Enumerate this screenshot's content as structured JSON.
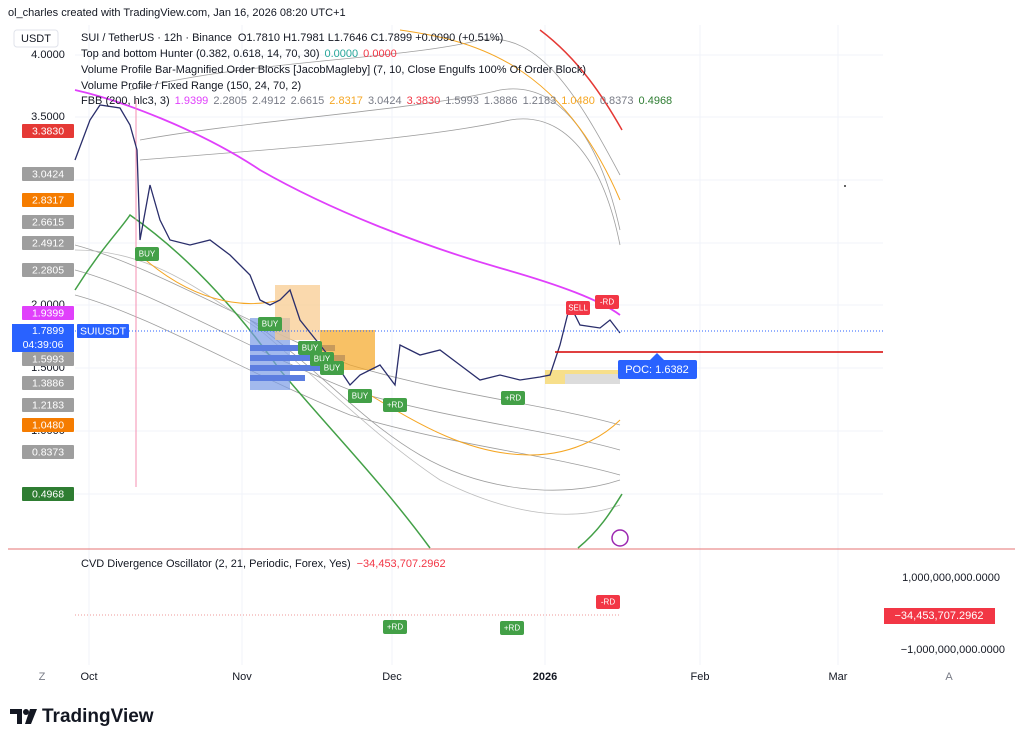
{
  "header": {
    "credit": "ol_charles created with TradingView.com, Jan 16, 2026 08:20 UTC+1",
    "currency": "USDT"
  },
  "legend": {
    "symbol": "SUI / TetherUS · 12h · Binance",
    "ohlc": "O1.7810 H1.7981 L1.7646 C1.7899 +0.0090 (+0.51%)",
    "hunter": {
      "name": "Top and bottom Hunter (0.382, 0.618, 14, 70, 30)",
      "values": [
        "0.0000",
        "0.0000"
      ]
    },
    "order_blocks": "Volume Profile Bar-Magnified Order Blocks [JacobMagleby] (7, 10, Close Engulfs 100% Of Order Block)",
    "fixed_range": "Volume Profile / Fixed Range (150, 24, 70, 2)",
    "fbb": {
      "name": "FBB (200, hlc3, 3)",
      "values": [
        "1.9399",
        "2.2805",
        "2.4912",
        "2.6615",
        "2.8317",
        "3.0424",
        "3.3830",
        "1.5993",
        "1.3886",
        "1.2183",
        "1.0480",
        "0.8373",
        "0.4968"
      ]
    }
  },
  "price_axis": {
    "levels": [
      "4.0000",
      "3.5000",
      "2.0000",
      "1.5000",
      "1.0000"
    ]
  },
  "current": {
    "price": "1.7899",
    "countdown": "04:39:06",
    "symbol": "SUIUSDT"
  },
  "poc": "POC: 1.6382",
  "signals": {
    "buy": "BUY",
    "sell": "SELL",
    "minus_rd": "-RD",
    "plus_rd": "+RD"
  },
  "oscillator": {
    "name": "CVD Divergence Oscillator (2, 21, Periodic, Forex, Yes)",
    "value": "−34,453,707.2962",
    "axis": [
      "1,000,000,000.0000",
      "−1,000,000,000.0000"
    ]
  },
  "time_axis": {
    "labels": [
      "Oct",
      "Nov",
      "Dec",
      "2026",
      "Feb",
      "Mar"
    ],
    "left_button": "Z",
    "right_button": "A"
  },
  "footer": {
    "brand": "TradingView"
  }
}
